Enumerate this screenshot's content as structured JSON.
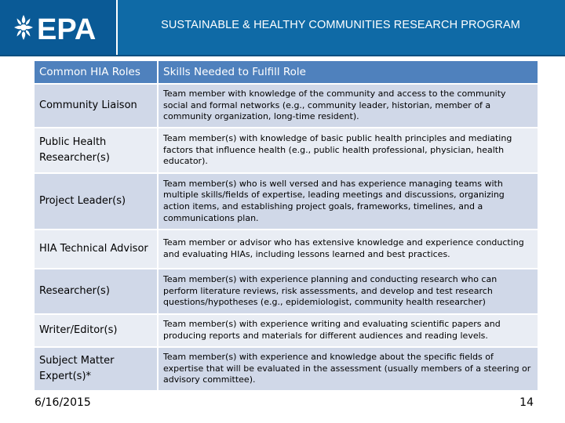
{
  "header": {
    "logo_text": "EPA",
    "title": "SUSTAINABLE & HEALTHY COMMUNITIES RESEARCH PROGRAM"
  },
  "table": {
    "columns": [
      "Common HIA Roles",
      "Skills Needed to Fulfill Role"
    ],
    "rows": [
      {
        "role": "Community Liaison",
        "skills": "Team member with knowledge of the community and access to the community social and formal networks (e.g., community leader, historian, member of a community organization, long-time resident)."
      },
      {
        "role": "Public Health Researcher(s)",
        "skills": "Team member(s) with knowledge of basic public health principles and mediating factors that influence health (e.g., public health professional, physician, health educator)."
      },
      {
        "role": "Project Leader(s)",
        "skills": "Team member(s) who is well versed and has experience managing teams with multiple skills/fields of expertise, leading meetings and discussions, organizing action items, and establishing project goals, frameworks, timelines, and a communications plan."
      },
      {
        "role": "HIA Technical Advisor",
        "skills": "Team member or advisor who has extensive knowledge and experience conducting and evaluating HIAs, including lessons learned and best practices."
      },
      {
        "role": "Researcher(s)",
        "skills": "Team member(s) with experience planning and conducting research who can perform literature reviews, risk assessments, and develop and test research questions/hypotheses (e.g., epidemiologist, community health researcher)"
      },
      {
        "role": "Writer/Editor(s)",
        "skills": "Team member(s) with experience writing and evaluating scientific papers and producing reports and materials for different audiences and reading levels."
      },
      {
        "role": "Subject Matter Expert(s)*",
        "skills": "Team member(s) with experience and knowledge about the specific fields of expertise that will be evaluated in the assessment (usually members of a steering or advisory committee)."
      }
    ]
  },
  "footer": {
    "date": "6/16/2015",
    "page": "14"
  }
}
